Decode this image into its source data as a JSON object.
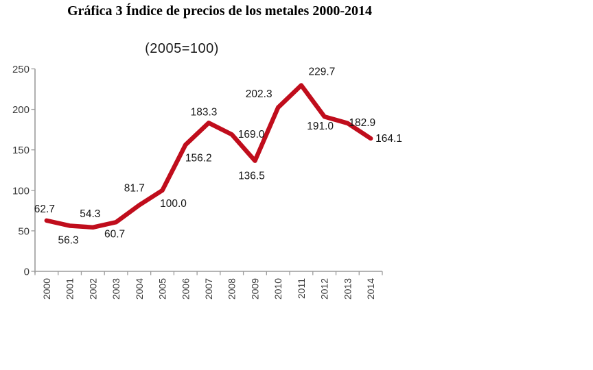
{
  "chart_data": {
    "type": "line",
    "title": "Gráfica 3 Índice de precios de los metales 2000-2014",
    "subtitle": "(2005=100)",
    "categories": [
      "2000",
      "2001",
      "2002",
      "2003",
      "2004",
      "2005",
      "2006",
      "2007",
      "2008",
      "2009",
      "2010",
      "2011",
      "2012",
      "2013",
      "2014"
    ],
    "values": [
      62.7,
      56.3,
      54.3,
      60.7,
      81.7,
      100.0,
      156.2,
      183.3,
      169.0,
      136.5,
      202.3,
      229.7,
      191.0,
      182.9,
      164.1
    ],
    "data_labels": [
      "62.7",
      "56.3",
      "54.3",
      "60.7",
      "81.7",
      "100.0",
      "156.2",
      "183.3",
      "169.0",
      "136.5",
      "202.3",
      "229.7",
      "191.0",
      "182.9",
      "164.1"
    ],
    "xlabel": "",
    "ylabel": "",
    "ylim": [
      0,
      250
    ],
    "ytick_step": 50,
    "grid": false,
    "legend": "none",
    "line_color": "#C00D1C",
    "axis_color": "#9B9B9B"
  }
}
